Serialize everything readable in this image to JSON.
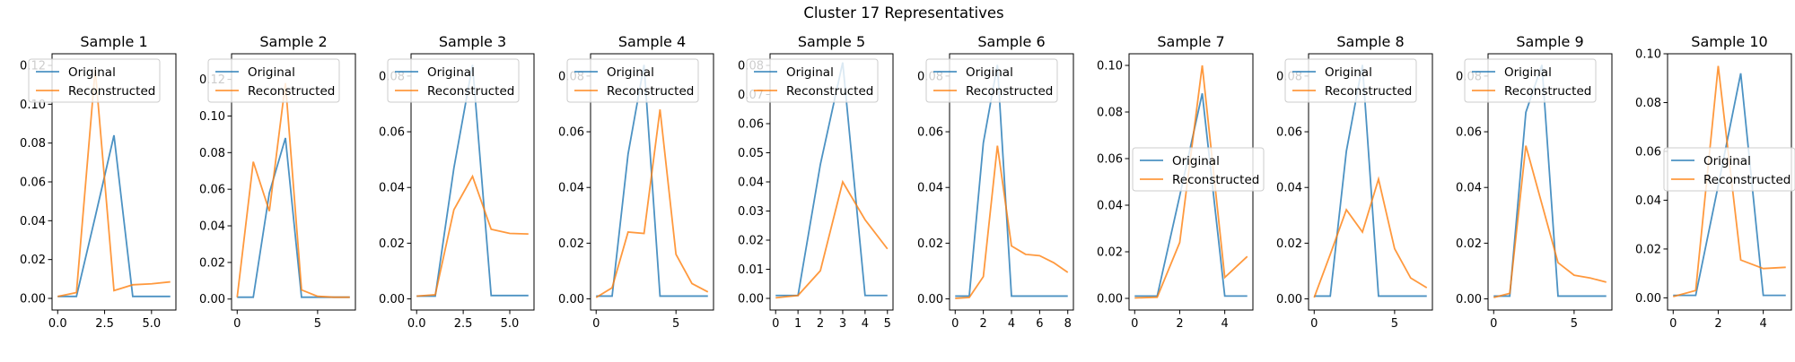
{
  "figure": {
    "suptitle": "Cluster 17 Representatives"
  },
  "colors": {
    "original": "#1f77b4",
    "reconstructed": "#ff7f0e"
  },
  "chart_data": [
    {
      "type": "line",
      "title": "Sample 1",
      "ylim": [
        -0.006,
        0.126
      ],
      "xlim": [
        -0.3,
        6.3
      ],
      "xticks": [
        0,
        2.5,
        5
      ],
      "xtick_labels": [
        "0.0",
        "2.5",
        "5.0"
      ],
      "yticks": [
        0,
        0.02,
        0.04,
        0.06,
        0.08,
        0.1,
        0.12
      ],
      "ytick_labels": [
        "0.00",
        "0.02",
        "0.04",
        "0.06",
        "0.08",
        "0.10",
        "0.12"
      ],
      "legend": "upper-left",
      "series": [
        {
          "name": "Original",
          "x": [
            0,
            1,
            2,
            3,
            4,
            5,
            6
          ],
          "y": [
            0.001,
            0.001,
            0.042,
            0.084,
            0.001,
            0.001,
            0.001
          ]
        },
        {
          "name": "Reconstructed",
          "x": [
            0,
            1,
            2,
            3,
            4,
            5,
            6
          ],
          "y": [
            0.001,
            0.003,
            0.118,
            0.004,
            0.007,
            0.0075,
            0.0085
          ]
        }
      ]
    },
    {
      "type": "line",
      "title": "Sample 2",
      "ylim": [
        -0.006,
        0.134
      ],
      "xlim": [
        -0.35,
        7.35
      ],
      "xticks": [
        0,
        5
      ],
      "xtick_labels": [
        "0",
        "5"
      ],
      "yticks": [
        0,
        0.02,
        0.04,
        0.06,
        0.08,
        0.1,
        0.12
      ],
      "ytick_labels": [
        "0.00",
        "0.02",
        "0.04",
        "0.06",
        "0.08",
        "0.10",
        "0.12"
      ],
      "legend": "upper-left",
      "series": [
        {
          "name": "Original",
          "x": [
            0,
            1,
            2,
            3,
            4,
            5,
            6,
            7
          ],
          "y": [
            0.001,
            0.001,
            0.058,
            0.088,
            0.001,
            0.001,
            0.001,
            0.001
          ]
        },
        {
          "name": "Reconstructed",
          "x": [
            0,
            1,
            2,
            3,
            4,
            5,
            6,
            7
          ],
          "y": [
            0.001,
            0.075,
            0.048,
            0.118,
            0.005,
            0.0015,
            0.001,
            0.001
          ]
        }
      ]
    },
    {
      "type": "line",
      "title": "Sample 3",
      "ylim": [
        -0.004,
        0.088
      ],
      "xlim": [
        -0.3,
        6.3
      ],
      "xticks": [
        0,
        2.5,
        5
      ],
      "xtick_labels": [
        "0.0",
        "2.5",
        "5.0"
      ],
      "yticks": [
        0,
        0.02,
        0.04,
        0.06,
        0.08
      ],
      "ytick_labels": [
        "0.00",
        "0.02",
        "0.04",
        "0.06",
        "0.08"
      ],
      "legend": "upper-left",
      "series": [
        {
          "name": "Original",
          "x": [
            0,
            1,
            2,
            3,
            4,
            5,
            6
          ],
          "y": [
            0.001,
            0.001,
            0.047,
            0.084,
            0.0012,
            0.0012,
            0.0012
          ]
        },
        {
          "name": "Reconstructed",
          "x": [
            0,
            1,
            2,
            3,
            4,
            5,
            6
          ],
          "y": [
            0.001,
            0.0015,
            0.032,
            0.044,
            0.025,
            0.0235,
            0.0233
          ]
        }
      ]
    },
    {
      "type": "line",
      "title": "Sample 4",
      "ylim": [
        -0.004,
        0.088
      ],
      "xlim": [
        -0.35,
        7.35
      ],
      "xticks": [
        0,
        5
      ],
      "xtick_labels": [
        "0",
        "5"
      ],
      "yticks": [
        0,
        0.02,
        0.04,
        0.06,
        0.08
      ],
      "ytick_labels": [
        "0.00",
        "0.02",
        "0.04",
        "0.06",
        "0.08"
      ],
      "legend": "upper-left",
      "series": [
        {
          "name": "Original",
          "x": [
            0,
            1,
            2,
            3,
            4,
            5,
            6,
            7
          ],
          "y": [
            0.001,
            0.001,
            0.052,
            0.084,
            0.001,
            0.001,
            0.001,
            0.001
          ]
        },
        {
          "name": "Reconstructed",
          "x": [
            0,
            1,
            2,
            3,
            4,
            5,
            6,
            7
          ],
          "y": [
            0.0005,
            0.004,
            0.024,
            0.0235,
            0.068,
            0.016,
            0.0055,
            0.0025
          ]
        }
      ]
    },
    {
      "type": "line",
      "title": "Sample 5",
      "ylim": [
        -0.004,
        0.084
      ],
      "xlim": [
        -0.25,
        5.25
      ],
      "xticks": [
        0,
        1,
        2,
        3,
        4,
        5
      ],
      "xtick_labels": [
        "0",
        "1",
        "2",
        "3",
        "4",
        "5"
      ],
      "yticks": [
        0,
        0.01,
        0.02,
        0.03,
        0.04,
        0.05,
        0.06,
        0.07,
        0.08
      ],
      "ytick_labels": [
        "0.00",
        "0.01",
        "0.02",
        "0.03",
        "0.04",
        "0.05",
        "0.06",
        "0.07",
        "0.08"
      ],
      "legend": "upper-left",
      "series": [
        {
          "name": "Original",
          "x": [
            0,
            1,
            2,
            3,
            4,
            5
          ],
          "y": [
            0.001,
            0.001,
            0.046,
            0.081,
            0.001,
            0.001
          ]
        },
        {
          "name": "Reconstructed",
          "x": [
            0,
            1,
            2,
            3,
            4,
            5
          ],
          "y": [
            0.0002,
            0.001,
            0.0095,
            0.04,
            0.027,
            0.017
          ]
        }
      ]
    },
    {
      "type": "line",
      "title": "Sample 6",
      "ylim": [
        -0.004,
        0.088
      ],
      "xlim": [
        -0.4,
        8.4
      ],
      "xticks": [
        0,
        2,
        4,
        6,
        8
      ],
      "xtick_labels": [
        "0",
        "2",
        "4",
        "6",
        "8"
      ],
      "yticks": [
        0,
        0.02,
        0.04,
        0.06,
        0.08
      ],
      "ytick_labels": [
        "0.00",
        "0.02",
        "0.04",
        "0.06",
        "0.08"
      ],
      "legend": "upper-left",
      "series": [
        {
          "name": "Original",
          "x": [
            0,
            1,
            2,
            3,
            4,
            5,
            6,
            7,
            8
          ],
          "y": [
            0.001,
            0.001,
            0.056,
            0.084,
            0.001,
            0.001,
            0.001,
            0.001,
            0.001
          ]
        },
        {
          "name": "Reconstructed",
          "x": [
            0,
            1,
            2,
            3,
            4,
            5,
            6,
            7,
            8
          ],
          "y": [
            0.0002,
            0.0005,
            0.008,
            0.055,
            0.019,
            0.016,
            0.0155,
            0.013,
            0.0095
          ]
        }
      ]
    },
    {
      "type": "line",
      "title": "Sample 7",
      "ylim": [
        -0.005,
        0.105
      ],
      "xlim": [
        -0.25,
        5.25
      ],
      "xticks": [
        0,
        2,
        4
      ],
      "xtick_labels": [
        "0",
        "2",
        "4"
      ],
      "yticks": [
        0,
        0.02,
        0.04,
        0.06,
        0.08,
        0.1
      ],
      "ytick_labels": [
        "0.00",
        "0.02",
        "0.04",
        "0.06",
        "0.08",
        "0.10"
      ],
      "legend": "center-left",
      "series": [
        {
          "name": "Original",
          "x": [
            0,
            1,
            2,
            3,
            4,
            5
          ],
          "y": [
            0.001,
            0.001,
            0.044,
            0.088,
            0.001,
            0.001
          ]
        },
        {
          "name": "Reconstructed",
          "x": [
            0,
            1,
            2,
            3,
            4,
            5
          ],
          "y": [
            0.0002,
            0.0005,
            0.024,
            0.1,
            0.009,
            0.018
          ]
        }
      ]
    },
    {
      "type": "line",
      "title": "Sample 8",
      "ylim": [
        -0.004,
        0.088
      ],
      "xlim": [
        -0.35,
        7.35
      ],
      "xticks": [
        0,
        5
      ],
      "xtick_labels": [
        "0",
        "5"
      ],
      "yticks": [
        0,
        0.02,
        0.04,
        0.06,
        0.08
      ],
      "ytick_labels": [
        "0.00",
        "0.02",
        "0.04",
        "0.06",
        "0.08"
      ],
      "legend": "upper-left",
      "series": [
        {
          "name": "Original",
          "x": [
            0,
            1,
            2,
            3,
            4,
            5,
            6,
            7
          ],
          "y": [
            0.001,
            0.001,
            0.053,
            0.084,
            0.001,
            0.001,
            0.001,
            0.001
          ]
        },
        {
          "name": "Reconstructed",
          "x": [
            0,
            1,
            2,
            3,
            4,
            5,
            6,
            7
          ],
          "y": [
            0.0005,
            0.016,
            0.032,
            0.024,
            0.043,
            0.018,
            0.0075,
            0.004
          ]
        }
      ]
    },
    {
      "type": "line",
      "title": "Sample 9",
      "ylim": [
        -0.004,
        0.088
      ],
      "xlim": [
        -0.35,
        7.35
      ],
      "xticks": [
        0,
        5
      ],
      "xtick_labels": [
        "0",
        "5"
      ],
      "yticks": [
        0,
        0.02,
        0.04,
        0.06,
        0.08
      ],
      "ytick_labels": [
        "0.00",
        "0.02",
        "0.04",
        "0.06",
        "0.08"
      ],
      "legend": "upper-left",
      "series": [
        {
          "name": "Original",
          "x": [
            0,
            1,
            2,
            3,
            4,
            5,
            6,
            7
          ],
          "y": [
            0.001,
            0.001,
            0.067,
            0.084,
            0.001,
            0.001,
            0.001,
            0.001
          ]
        },
        {
          "name": "Reconstructed",
          "x": [
            0,
            1,
            2,
            3,
            4,
            5,
            6,
            7
          ],
          "y": [
            0.0005,
            0.002,
            0.055,
            0.034,
            0.013,
            0.0085,
            0.0075,
            0.006
          ]
        }
      ]
    },
    {
      "type": "line",
      "title": "Sample 10",
      "ylim": [
        -0.005,
        0.1
      ],
      "xlim": [
        -0.25,
        5.25
      ],
      "xticks": [
        0,
        2,
        4
      ],
      "xtick_labels": [
        "0",
        "2",
        "4"
      ],
      "yticks": [
        0,
        0.02,
        0.04,
        0.06,
        0.08,
        0.1
      ],
      "ytick_labels": [
        "0.00",
        "0.02",
        "0.04",
        "0.06",
        "0.08",
        "0.10"
      ],
      "legend": "center-right",
      "series": [
        {
          "name": "Original",
          "x": [
            0,
            1,
            2,
            3,
            4,
            5
          ],
          "y": [
            0.001,
            0.001,
            0.046,
            0.092,
            0.001,
            0.001
          ]
        },
        {
          "name": "Reconstructed",
          "x": [
            0,
            1,
            2,
            3,
            4,
            5
          ],
          "y": [
            0.0005,
            0.003,
            0.095,
            0.0155,
            0.012,
            0.0125
          ]
        }
      ]
    }
  ]
}
